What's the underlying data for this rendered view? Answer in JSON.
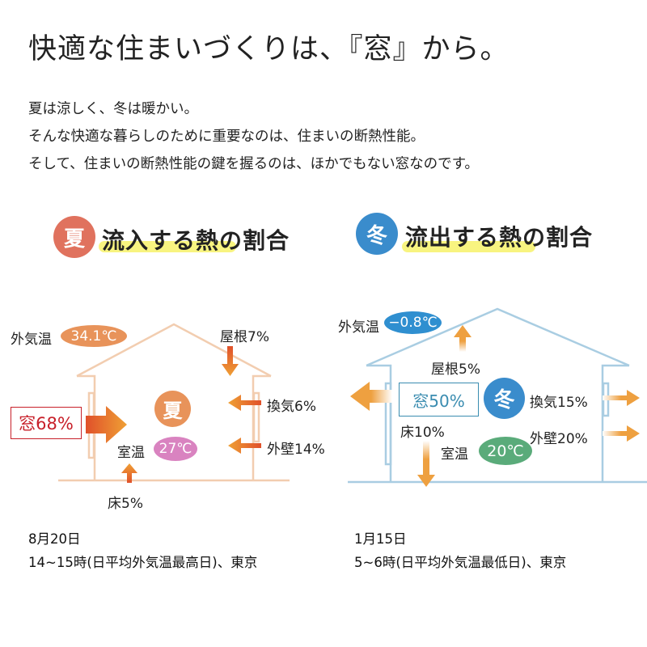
{
  "title": "快適な住まいづくりは、『窓』から。",
  "intro": [
    "夏は涼しく、冬は暖かい。",
    "そんな快適な暮らしのために重要なのは、住まいの断熱性能。",
    "そして、住まいの断熱性能の鍵を握るのは、ほかでもない窓なのです。"
  ],
  "summer": {
    "badge": "夏",
    "heading": "流入する熱の割合",
    "outside_label": "外気温",
    "outside_temp": "34.1℃",
    "roof": "屋根7%",
    "window": "窓68%",
    "center_badge": "夏",
    "ventilation": "換気6%",
    "wall": "外壁14%",
    "room_label": "室温",
    "room_temp": "27℃",
    "floor": "床5%",
    "caption_date": "8月20日",
    "caption_detail": "14~15時(日平均外気温最高日)、東京",
    "colors": {
      "badge": "#e0725e",
      "house": "#f2cdb0",
      "pill": "#e8935a",
      "room_pill": "#d983c0",
      "window_text": "#c8202a"
    }
  },
  "winter": {
    "badge": "冬",
    "heading": "流出する熱の割合",
    "outside_label": "外気温",
    "outside_temp": "−0.8℃",
    "roof": "屋根5%",
    "window": "窓50%",
    "center_badge": "冬",
    "ventilation": "換気15%",
    "wall": "外壁20%",
    "room_label": "室温",
    "room_temp": "20℃",
    "floor": "床10%",
    "caption_date": "1月15日",
    "caption_detail": "5~6時(日平均外気温最低日)、東京",
    "colors": {
      "badge": "#3a8ccc",
      "house": "#a9cde2",
      "pill": "#2f8fd0",
      "room_pill": "#5aab7a",
      "window_text": "#3a8cb0"
    }
  }
}
